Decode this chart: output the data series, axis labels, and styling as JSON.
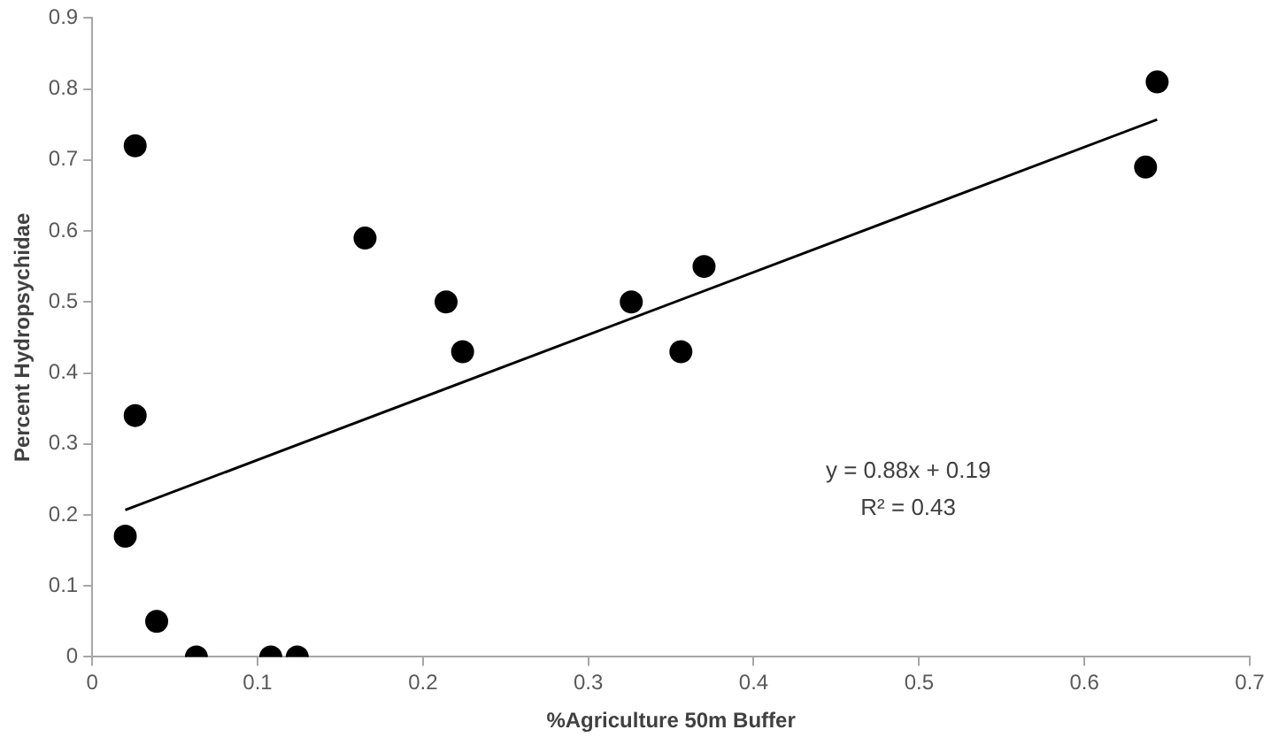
{
  "chart_data": {
    "type": "scatter",
    "xlabel": "%Agriculture 50m Buffer",
    "ylabel": "Percent Hydropsychidae",
    "xlim": [
      0,
      0.7
    ],
    "xticks": [
      0,
      0.1,
      0.2,
      0.3,
      0.4,
      0.5,
      0.6,
      0.7
    ],
    "ylim": [
      0,
      0.9
    ],
    "yticks": [
      0,
      0.1,
      0.2,
      0.3,
      0.4,
      0.5,
      0.6,
      0.7,
      0.8,
      0.9
    ],
    "grid": false,
    "legend": false,
    "series": [
      {
        "marker": "circle",
        "color": "#000000",
        "x": [
          0.026,
          0.026,
          0.02,
          0.039,
          0.063,
          0.108,
          0.124,
          0.165,
          0.214,
          0.224,
          0.326,
          0.356,
          0.37,
          0.637,
          0.644
        ],
        "values": [
          0.72,
          0.34,
          0.17,
          0.05,
          0,
          0,
          0,
          0.59,
          0.5,
          0.43,
          0.5,
          0.43,
          0.55,
          0.69,
          0.81
        ]
      },
      {
        "type": "line",
        "color": "#000000",
        "line_style": "solid",
        "marker": "none",
        "x": [
          0.02,
          0.644
        ],
        "values": [
          0.207,
          0.757
        ]
      }
    ],
    "annotations": [
      "y = 0.88x + 0.19",
      "R² = 0.43"
    ]
  }
}
